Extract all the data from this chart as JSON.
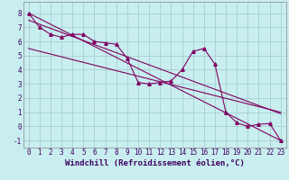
{
  "xlabel": "Windchill (Refroidissement éolien,°C)",
  "background_color": "#c8eef0",
  "line_color": "#800060",
  "xlim": [
    -0.5,
    23.5
  ],
  "ylim": [
    -1.5,
    8.8
  ],
  "xticks": [
    0,
    1,
    2,
    3,
    4,
    5,
    6,
    7,
    8,
    9,
    10,
    11,
    12,
    13,
    14,
    15,
    16,
    17,
    18,
    19,
    20,
    21,
    22,
    23
  ],
  "yticks": [
    -1,
    0,
    1,
    2,
    3,
    4,
    5,
    6,
    7,
    8
  ],
  "data_line1": {
    "x": [
      0,
      1,
      2,
      3,
      4,
      5,
      6,
      7,
      8,
      9,
      10,
      11,
      12,
      13,
      14,
      15,
      16,
      17,
      18,
      19,
      20,
      21,
      22,
      23
    ],
    "y": [
      8.0,
      7.0,
      6.5,
      6.3,
      6.5,
      6.5,
      6.0,
      5.9,
      5.8,
      4.8,
      3.1,
      3.0,
      3.1,
      3.2,
      4.0,
      5.3,
      5.5,
      4.4,
      1.0,
      0.25,
      0.0,
      0.15,
      0.2,
      -1.0
    ]
  },
  "data_line2": {
    "x": [
      0,
      23
    ],
    "y": [
      8.0,
      -1.0
    ]
  },
  "data_line3": {
    "x": [
      0,
      23
    ],
    "y": [
      7.5,
      0.9
    ]
  },
  "data_line4": {
    "x": [
      0,
      23
    ],
    "y": [
      5.5,
      1.0
    ]
  },
  "grid_color": "#a0c8cc",
  "xlabel_fontsize": 6.5,
  "tick_fontsize": 5.5
}
